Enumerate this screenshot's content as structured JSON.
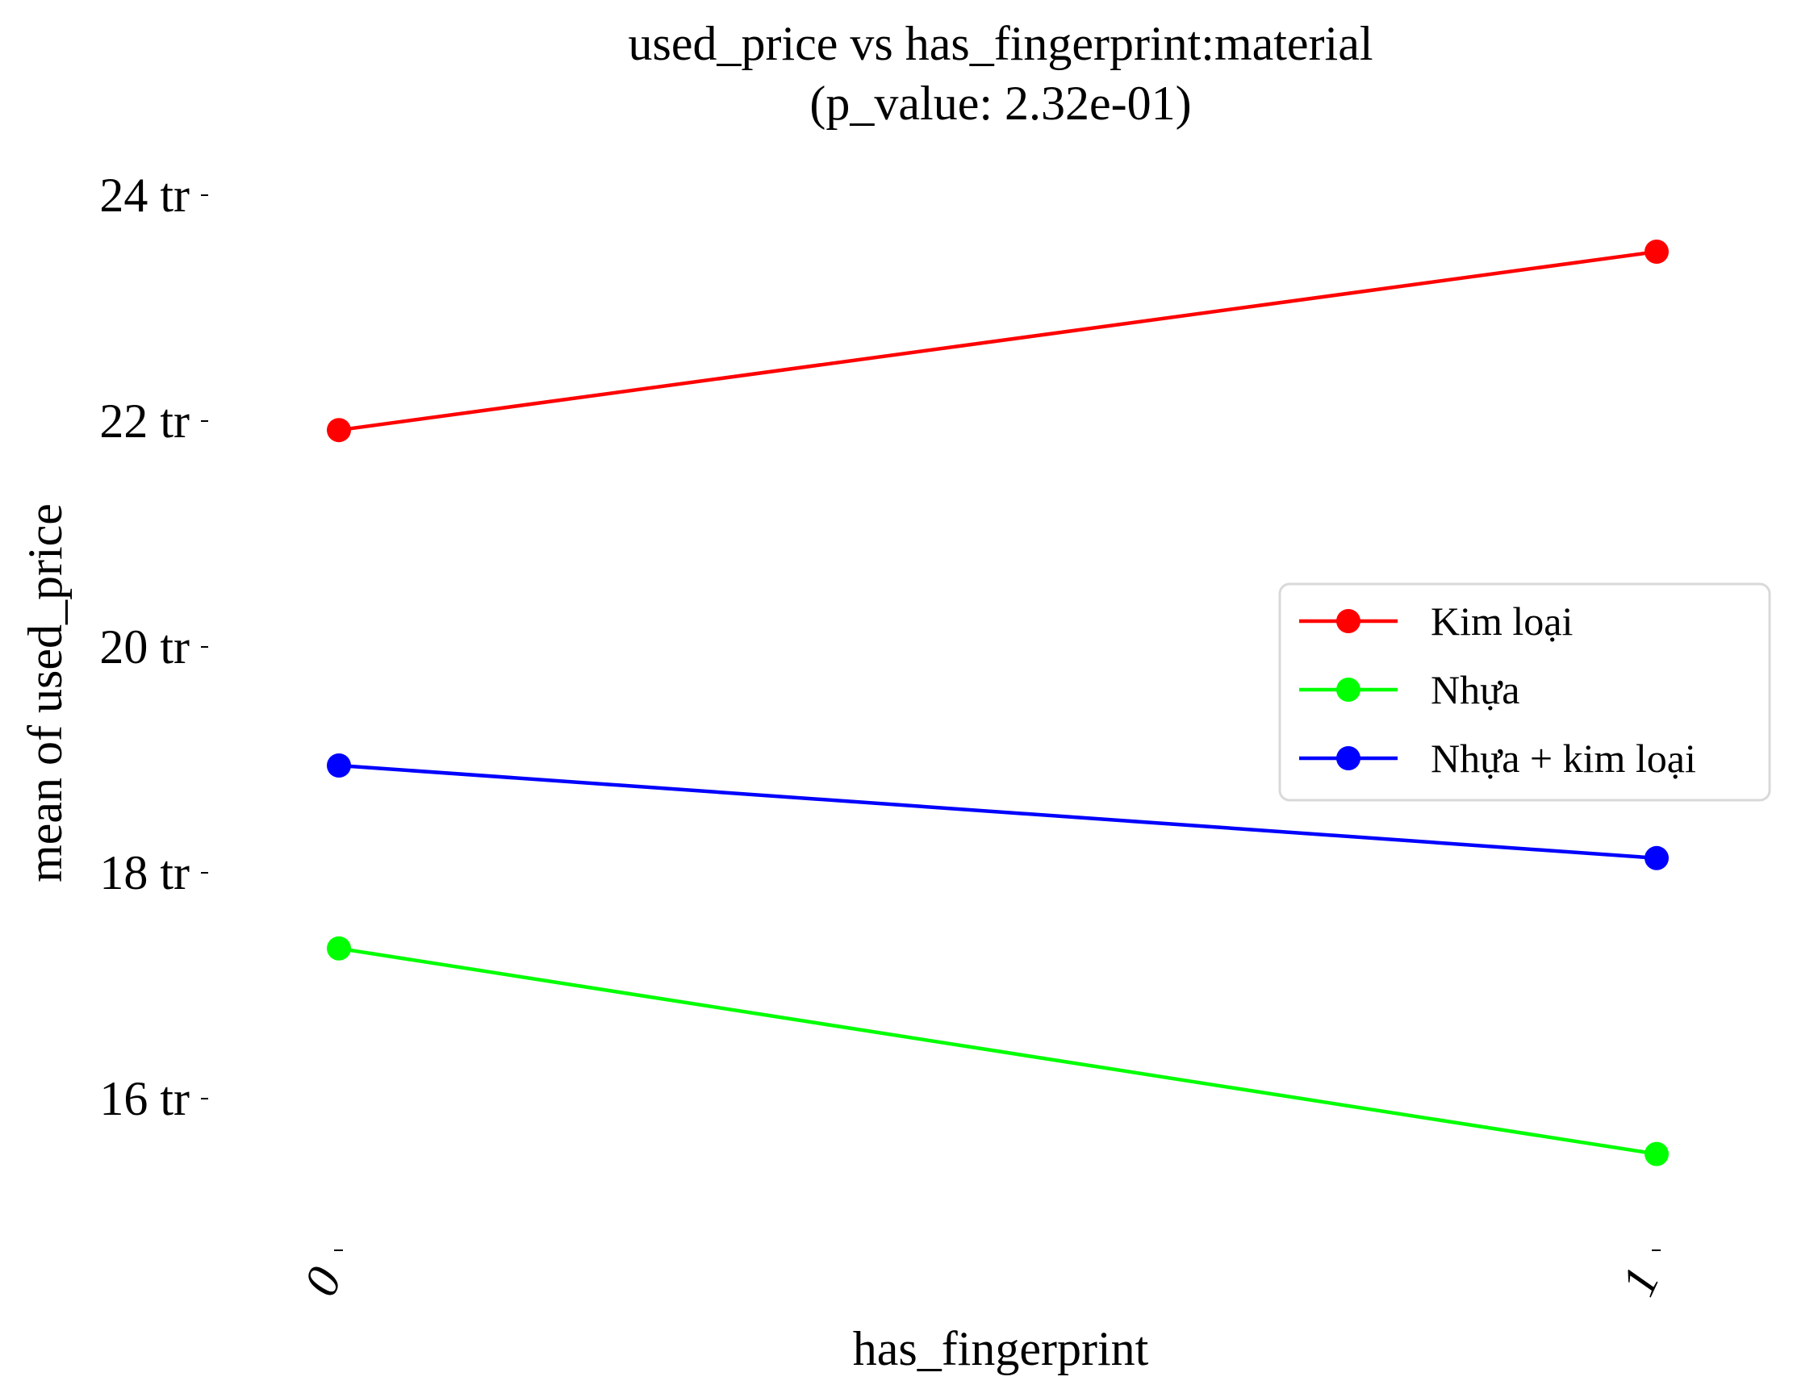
{
  "chart_data": {
    "type": "line",
    "title": "used_price vs has_fingerprint:material",
    "subtitle": "(p_value: 2.32e-01)",
    "xlabel": "has_fingerprint",
    "ylabel": "mean of used_price",
    "categories": [
      "0",
      "1"
    ],
    "y_ticks": [
      {
        "value": 16,
        "label": "16 tr"
      },
      {
        "value": 18,
        "label": "18 tr"
      },
      {
        "value": 20,
        "label": "20 tr"
      },
      {
        "value": 22,
        "label": "22 tr"
      },
      {
        "value": 24,
        "label": "24 tr"
      }
    ],
    "ylim": [
      14.55,
      24.55
    ],
    "grid": false,
    "legend_placement": "center-right",
    "series": [
      {
        "name": "Kim loại",
        "color": "#ff0000",
        "values": [
          21.92,
          23.5
        ]
      },
      {
        "name": "Nhựa",
        "color": "#00ff00",
        "values": [
          17.33,
          15.51
        ]
      },
      {
        "name": "Nhựa + kim loại",
        "color": "#0000ff",
        "values": [
          18.95,
          18.13
        ]
      }
    ]
  }
}
